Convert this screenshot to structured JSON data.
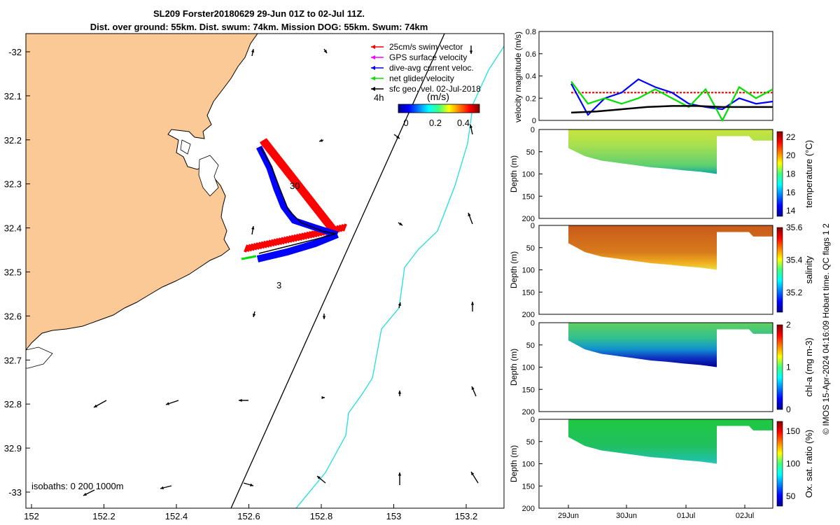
{
  "title_line1": "SL209 Forster20180629 29-Jun 01Z to 02-Jul 11Z.",
  "title_line2": "Dist. over ground: 55km. Dist. swum: 74km. Mission DOG: 55km. Swum: 74km",
  "side_text": "© IMOS 15-Apr-2024 04:16:09 Hobart time. QC flags 1  2",
  "map": {
    "lon_ticks": [
      "152",
      "152.2",
      "152.4",
      "152.6",
      "152.8",
      "153",
      "153.2"
    ],
    "lat_ticks": [
      "-32",
      "32.1",
      "32.2",
      "32.3",
      "32.4",
      "32.5",
      "32.6",
      "32.7",
      "32.8",
      "32.9",
      "-33"
    ],
    "legend": [
      {
        "label": "25cm/s swim vector",
        "color": "#ff0000"
      },
      {
        "label": "GPS surface velocity",
        "color": "#ff00ff"
      },
      {
        "label": "dive-avg current veloc.",
        "color": "#0000ff"
      },
      {
        "label": "net glider velocity",
        "color": "#00e000"
      },
      {
        "label": "sfc geo. vel. 02-Jul-2018",
        "color": "#000000"
      }
    ],
    "age_label": "4h",
    "colorbar_unit": "(m/s)",
    "colorbar_ticks": [
      "0",
      "0.2",
      "0.4"
    ],
    "isobath_label": "isobaths: 0   200  1000m",
    "annotations": [
      "30",
      "3"
    ]
  },
  "chart_data": [
    {
      "type": "line",
      "ylabel": "velocity magnitude (m/s)",
      "ylim": [
        0,
        0.8
      ],
      "yticks": [
        "0",
        "0.2",
        "0.4",
        "0.6",
        "0.8"
      ],
      "x_range_days": [
        "29-Jun 01Z",
        "02-Jul 11Z"
      ],
      "series": [
        {
          "name": "swim",
          "color": "#ff0000",
          "values": [
            0.25,
            0.25,
            0.25,
            0.25,
            0.25,
            0.25,
            0.25,
            0.25
          ]
        },
        {
          "name": "dive-avg current",
          "color": "#0000ff",
          "values": [
            0.33,
            0.05,
            0.2,
            0.25,
            0.37,
            0.3,
            0.25,
            0.15,
            0.12,
            0.1,
            0.2,
            0.15,
            0.17
          ]
        },
        {
          "name": "net glider",
          "color": "#00e000",
          "values": [
            0.35,
            0.15,
            0.2,
            0.15,
            0.2,
            0.28,
            0.2,
            0.12,
            0.28,
            0.0,
            0.3,
            0.2,
            0.28
          ]
        },
        {
          "name": "sfc geo",
          "color": "#000000",
          "values": [
            0.07,
            0.08,
            0.1,
            0.12,
            0.13,
            0.13,
            0.12,
            0.12,
            0.12
          ]
        }
      ]
    },
    {
      "type": "heatmap",
      "ylabel": "Depth (m)",
      "cbar_label": "temperature (°C)",
      "cbar_ticks": [
        "14",
        "16",
        "18",
        "20",
        "22"
      ],
      "yticks": [
        "0",
        "50",
        "100",
        "150",
        "200"
      ]
    },
    {
      "type": "heatmap",
      "ylabel": "Depth (m)",
      "cbar_label": "salinity",
      "cbar_ticks": [
        "35.2",
        "35.4",
        "35.6"
      ],
      "yticks": [
        "0",
        "50",
        "100",
        "150",
        "200"
      ]
    },
    {
      "type": "heatmap",
      "ylabel": "Depth (m)",
      "cbar_label": "chl-a (mg m-3)",
      "cbar_ticks": [
        "0",
        "1",
        "2"
      ],
      "yticks": [
        "0",
        "50",
        "100",
        "150",
        "200"
      ]
    },
    {
      "type": "heatmap",
      "ylabel": "Depth (m)",
      "cbar_label": "Ox. sat. ratio (%)",
      "cbar_ticks": [
        "50",
        "100",
        "150"
      ],
      "yticks": [
        "0",
        "50",
        "100",
        "150",
        "200"
      ],
      "xticks": [
        "29Jun",
        "30Jun",
        "01Jul",
        "02Jul"
      ]
    }
  ]
}
